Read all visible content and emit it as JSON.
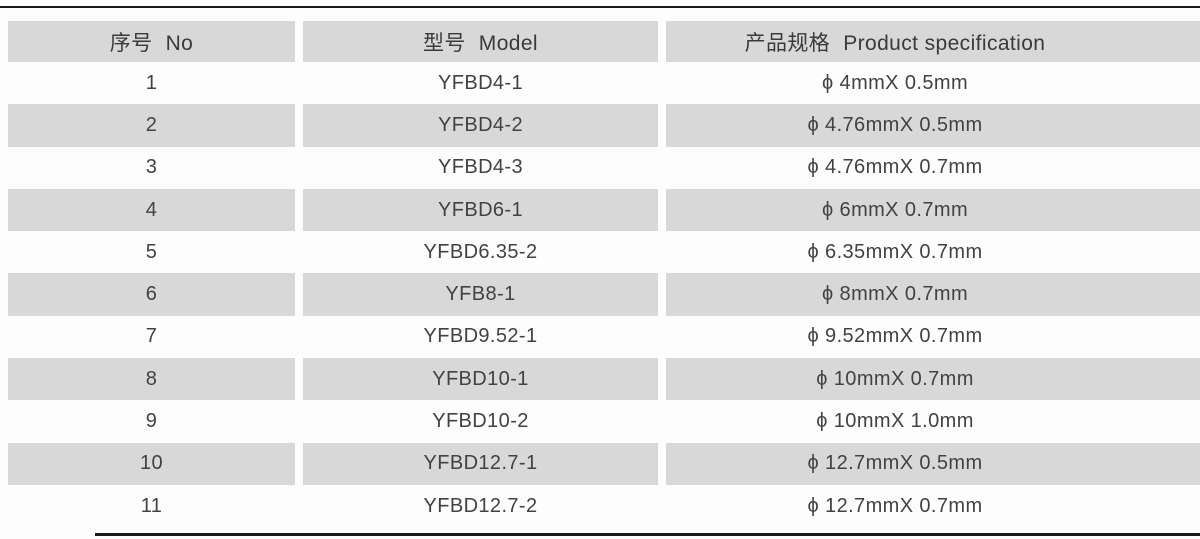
{
  "page": {
    "background": "#fdfdfd",
    "band_gray": "#d8d8d8",
    "text_color": "#3d3d3d",
    "rule_color": "#1a1a1a"
  },
  "table": {
    "headers": [
      {
        "zh": "序号",
        "en": "No"
      },
      {
        "zh": "型号",
        "en": "Model"
      },
      {
        "zh": "产品规格",
        "en": "Product specification"
      }
    ],
    "rows": [
      {
        "no": "1",
        "model": "YFBD4-1",
        "spec": "ϕ 4mmX 0.5mm"
      },
      {
        "no": "2",
        "model": "YFBD4-2",
        "spec": "ϕ 4.76mmX 0.5mm"
      },
      {
        "no": "3",
        "model": "YFBD4-3",
        "spec": "ϕ 4.76mmX 0.7mm"
      },
      {
        "no": "4",
        "model": "YFBD6-1",
        "spec": "ϕ 6mmX 0.7mm"
      },
      {
        "no": "5",
        "model": "YFBD6.35-2",
        "spec": "ϕ 6.35mmX 0.7mm"
      },
      {
        "no": "6",
        "model": "YFB8-1",
        "spec": "ϕ 8mmX 0.7mm"
      },
      {
        "no": "7",
        "model": "YFBD9.52-1",
        "spec": "ϕ 9.52mmX 0.7mm"
      },
      {
        "no": "8",
        "model": "YFBD10-1",
        "spec": "ϕ 10mmX 0.7mm"
      },
      {
        "no": "9",
        "model": "YFBD10-2",
        "spec": "ϕ 10mmX 1.0mm"
      },
      {
        "no": "10",
        "model": "YFBD12.7-1",
        "spec": "ϕ 12.7mmX 0.5mm"
      },
      {
        "no": "11",
        "model": "YFBD12.7-2",
        "spec": "ϕ 12.7mmX 0.7mm"
      }
    ]
  }
}
